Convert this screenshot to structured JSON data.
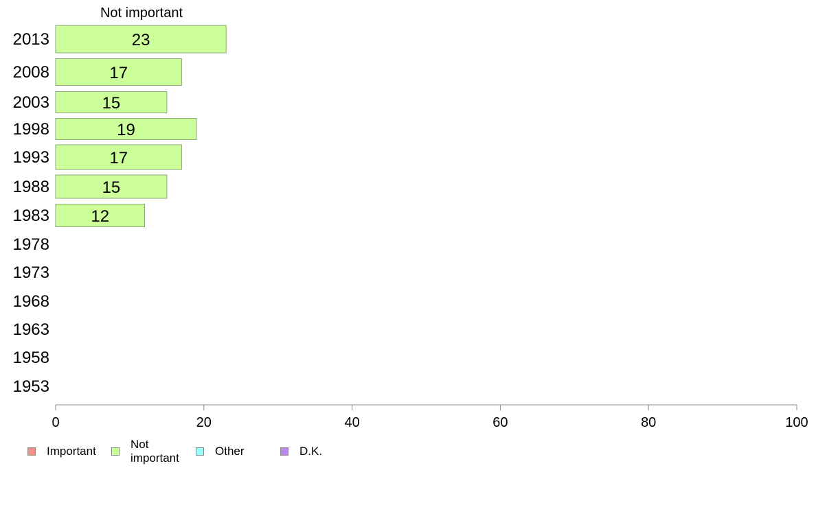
{
  "chart_data": {
    "type": "bar",
    "orientation": "horizontal",
    "title": "Not important",
    "categories": [
      "2013",
      "2008",
      "2003",
      "1998",
      "1993",
      "1988",
      "1983",
      "1978",
      "1973",
      "1968",
      "1963",
      "1958",
      "1953"
    ],
    "series": [
      {
        "name": "Not important",
        "values": [
          23,
          17,
          15,
          19,
          17,
          15,
          12,
          null,
          null,
          null,
          null,
          null,
          null
        ],
        "color": "#ccff99"
      }
    ],
    "xlim": [
      0,
      100
    ],
    "xticks": [
      0,
      20,
      40,
      60,
      80,
      100
    ],
    "grid": false,
    "legend_position": "bottom-left"
  },
  "legend": {
    "items": [
      {
        "label": "Important",
        "color": "#f4908a"
      },
      {
        "label": "Not important",
        "color": "#ccff99"
      },
      {
        "label": "Other",
        "color": "#99ffff"
      },
      {
        "label": "D.K.",
        "color": "#bb88ee"
      }
    ]
  }
}
